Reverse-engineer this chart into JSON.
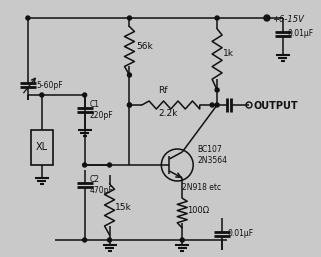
{
  "bg_color": "#c9c9c9",
  "line_color": "#111111",
  "components": {
    "vcc_label": "+6-15V",
    "output_label": "OUTPUT",
    "r1_label": "56k",
    "r2_label": "1k",
    "rf_label": "Rf",
    "rf_val": "2.2k",
    "r3_label": "15k",
    "r4_label": "100Ω",
    "c1_label": "C1\n220pF",
    "c2_label": "C2\n470pF",
    "c3_label": "0.01μF",
    "c4_label": "0.01μF",
    "vc_label": "5-60pF",
    "xl_label": "XL",
    "tr_label": "BC107\n2N3564",
    "tr_label2": "2N918 etc"
  }
}
